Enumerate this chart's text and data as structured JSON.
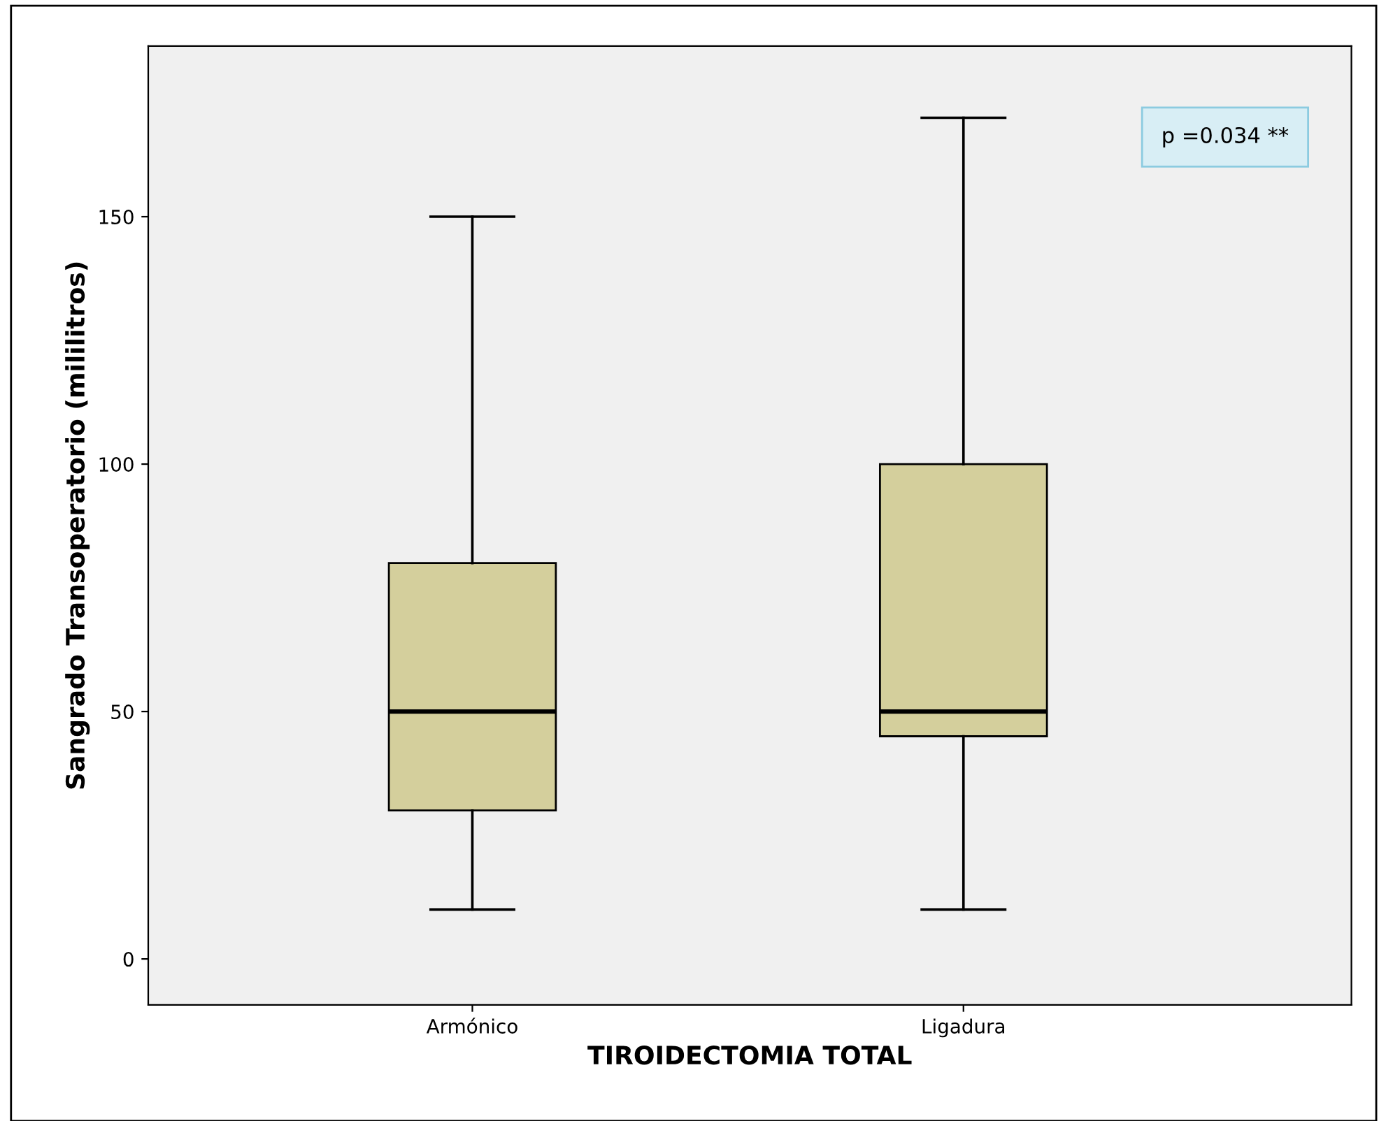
{
  "chart_data": {
    "type": "box",
    "xlabel": "TIROIDECTOMIA TOTAL",
    "ylabel": "Sangrado Transoperatorio (mililitros)",
    "categories": [
      "Armónico",
      "Ligadura"
    ],
    "boxes": [
      {
        "low": 10,
        "q1": 30,
        "median": 50,
        "q3": 80,
        "high": 150
      },
      {
        "low": 10,
        "q1": 45,
        "median": 50,
        "q3": 100,
        "high": 170
      }
    ],
    "color": "#d4cf9c",
    "ylim": [
      -9.3,
      184.5
    ],
    "yticks": [
      0,
      50,
      100,
      150
    ],
    "grid": false,
    "legend": false,
    "annotations": [
      "p =0.034 **"
    ]
  }
}
